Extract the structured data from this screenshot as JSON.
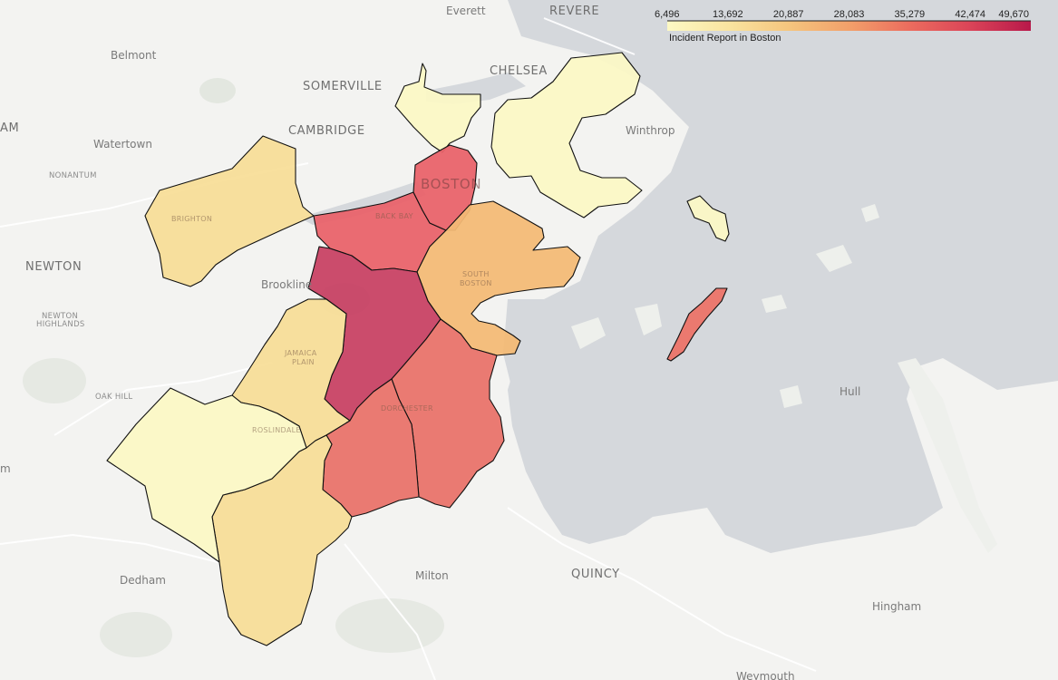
{
  "legend": {
    "title": "Incident Report in Boston",
    "ticks": [
      "6,496",
      "13,692",
      "20,887",
      "28,083",
      "35,279",
      "42,474",
      "49,670"
    ],
    "stops": [
      "#fdf9c4",
      "#f9e4a0",
      "#f5c57e",
      "#f2a06a",
      "#ec6c5e",
      "#db4458",
      "#b8184a"
    ]
  },
  "places": {
    "everett": "Everett",
    "revere": "REVERE",
    "belmont": "Belmont",
    "somerville": "SOMERVILLE",
    "chelsea": "CHELSEA",
    "cambridge": "CAMBRIDGE",
    "am": "AM",
    "watertown": "Watertown",
    "winthrop": "Winthrop",
    "nonantum": "NONANTUM",
    "boston": "BOSTON",
    "newton": "NEWTON",
    "brookline": "Brookline",
    "newton_highlands_1": "NEWTON",
    "newton_highlands_2": "HIGHLANDS",
    "oak_hill": "OAK HILL",
    "hull": "Hull",
    "m": "m",
    "dedham": "Dedham",
    "milton": "Milton",
    "quincy": "QUINCY",
    "hingham": "Hingham",
    "weymouth": "Weymouth"
  },
  "neighborhoods": {
    "brighton": "BRIGHTON",
    "back_bay": "BACK BAY",
    "south_boston_1": "SOUTH",
    "south_boston_2": "BOSTON",
    "jamaica_plain_1": "JAMAICA",
    "jamaica_plain_2": "PLAIN",
    "roslindale": "ROSLINDALE",
    "dorchester": "DORCHESTER"
  },
  "colors": {
    "water": "#d5d8dc",
    "land": "#f3f3f1",
    "park": "#e6e9e3"
  }
}
